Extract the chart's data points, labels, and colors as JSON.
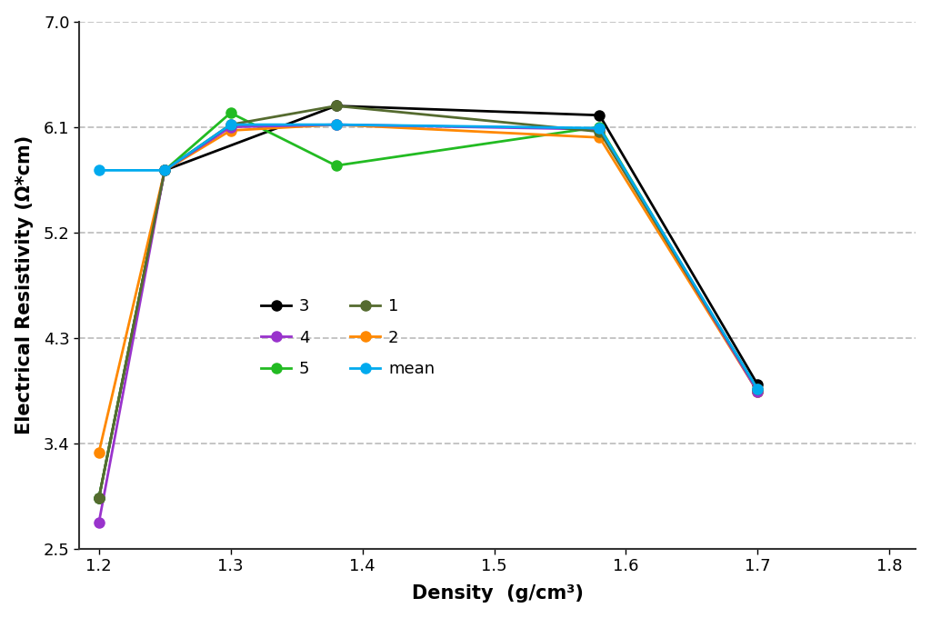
{
  "xlabel": "Density  (g/cm³)",
  "ylabel": "Electrical Resistivity (Ω*cm)",
  "xlim": [
    1.185,
    1.82
  ],
  "ylim": [
    2.5,
    7.0
  ],
  "xticks": [
    1.2,
    1.3,
    1.4,
    1.5,
    1.6,
    1.7,
    1.8
  ],
  "yticks": [
    2.5,
    3.4,
    4.3,
    5.2,
    6.1,
    7.0
  ],
  "grid_y": [
    3.4,
    4.3,
    5.2,
    6.1,
    7.0
  ],
  "series": [
    {
      "label": "3",
      "color": "#000000",
      "x": [
        1.2,
        1.25,
        1.38,
        1.58,
        1.7
      ],
      "y": [
        2.93,
        5.73,
        6.28,
        6.2,
        3.9
      ]
    },
    {
      "label": "5",
      "color": "#22bb22",
      "x": [
        1.2,
        1.25,
        1.3,
        1.38,
        1.58,
        1.7
      ],
      "y": [
        2.93,
        5.73,
        6.22,
        5.77,
        6.1,
        3.84
      ]
    },
    {
      "label": "2",
      "color": "#ff8800",
      "x": [
        1.2,
        1.25,
        1.3,
        1.38,
        1.58,
        1.7
      ],
      "y": [
        3.32,
        5.73,
        6.07,
        6.12,
        6.01,
        3.84
      ]
    },
    {
      "label": "4",
      "color": "#9933cc",
      "x": [
        1.2,
        1.25,
        1.3,
        1.38,
        1.58,
        1.7
      ],
      "y": [
        2.72,
        5.73,
        6.1,
        6.12,
        6.08,
        3.84
      ]
    },
    {
      "label": "1",
      "color": "#556B2F",
      "x": [
        1.2,
        1.25,
        1.3,
        1.38,
        1.58,
        1.7
      ],
      "y": [
        2.93,
        5.73,
        6.12,
        6.28,
        6.06,
        3.86
      ]
    },
    {
      "label": "mean",
      "color": "#00aaee",
      "x": [
        1.2,
        1.25,
        1.3,
        1.38,
        1.58,
        1.7
      ],
      "y": [
        5.73,
        5.73,
        6.12,
        6.12,
        6.09,
        3.86
      ]
    }
  ],
  "legend_ncol": 2,
  "legend_order": [
    "3",
    "4",
    "5",
    "1",
    "2",
    "mean"
  ],
  "background_color": "#ffffff"
}
